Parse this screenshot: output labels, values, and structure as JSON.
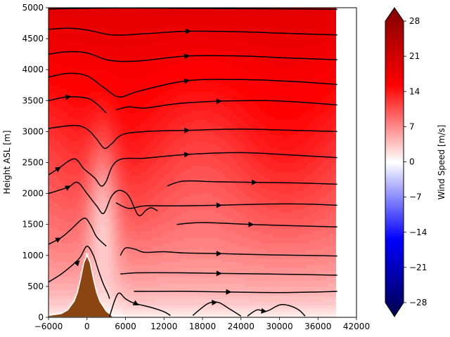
{
  "chart_data": {
    "type": "contourf",
    "title": "",
    "xlabel": "",
    "ylabel": "Height ASL [m]",
    "xlim": [
      -6000,
      42000
    ],
    "ylim": [
      0,
      5000
    ],
    "xticks": [
      "−6000",
      "0",
      "6000",
      "12000",
      "18000",
      "24000",
      "30000",
      "36000",
      "42000"
    ],
    "yticks": [
      "0",
      "500",
      "1000",
      "1500",
      "2000",
      "2500",
      "3000",
      "3500",
      "4000",
      "4500",
      "5000"
    ],
    "data_extent_x": [
      -6000,
      39000
    ],
    "colorbar": {
      "label": "Wind Speed [m/s]",
      "range": [
        -28,
        28
      ],
      "extend": "both",
      "colormap": "seismic",
      "ticks": [
        "−28",
        "−21",
        "−14",
        "−7",
        "0",
        "7",
        "14",
        "21",
        "28"
      ]
    },
    "terrain": {
      "color": "#8B4513",
      "peak_x": 0,
      "peak_height": 1000,
      "base_x": [
        -6000,
        4000
      ],
      "profile": [
        [
          -6000,
          30
        ],
        [
          -4000,
          60
        ],
        [
          -3000,
          120
        ],
        [
          -2000,
          260
        ],
        [
          -1500,
          400
        ],
        [
          -1000,
          620
        ],
        [
          -500,
          880
        ],
        [
          0,
          1000
        ],
        [
          500,
          880
        ],
        [
          1000,
          620
        ],
        [
          1500,
          400
        ],
        [
          2000,
          260
        ],
        [
          3000,
          100
        ],
        [
          4000,
          20
        ]
      ]
    },
    "wind_speed_field": {
      "units": "m/s",
      "surface_values_far": 3,
      "top_values": 17,
      "lee_minimum_x": 2500,
      "lee_minimum_value": 2
    },
    "streamlines": [
      {
        "points": [
          [
            -6000,
            4980
          ],
          [
            0,
            4990
          ],
          [
            6000,
            4995
          ],
          [
            15000,
            4990
          ],
          [
            24000,
            4985
          ],
          [
            33000,
            4980
          ],
          [
            39000,
            4975
          ]
        ]
      },
      {
        "points": [
          [
            -6000,
            4650
          ],
          [
            -3000,
            4670
          ],
          [
            0,
            4640
          ],
          [
            4000,
            4560
          ],
          [
            9000,
            4580
          ],
          [
            15700,
            4620
          ],
          [
            24000,
            4610
          ],
          [
            30000,
            4590
          ],
          [
            39000,
            4560
          ]
        ],
        "arrows": [
          [
            15700,
            4620
          ]
        ]
      },
      {
        "points": [
          [
            -6000,
            4250
          ],
          [
            -3000,
            4290
          ],
          [
            0,
            4270
          ],
          [
            3500,
            4150
          ],
          [
            8000,
            4140
          ],
          [
            15500,
            4220
          ],
          [
            24000,
            4220
          ],
          [
            31000,
            4190
          ],
          [
            39000,
            4160
          ]
        ],
        "arrows": [
          [
            15500,
            4220
          ]
        ]
      },
      {
        "points": [
          [
            -6000,
            3880
          ],
          [
            -3000,
            3940
          ],
          [
            0,
            3900
          ],
          [
            2500,
            3720
          ],
          [
            5000,
            3560
          ],
          [
            8000,
            3650
          ],
          [
            15500,
            3820
          ],
          [
            24000,
            3840
          ],
          [
            32000,
            3810
          ],
          [
            39000,
            3760
          ]
        ],
        "arrows": [
          [
            15500,
            3820
          ]
        ]
      },
      {
        "points": [
          [
            -6000,
            3500
          ],
          [
            -3000,
            3560
          ],
          [
            0,
            3540
          ],
          [
            1500,
            3450
          ],
          [
            3000,
            3300
          ]
        ],
        "arrows": [
          [
            -3000,
            3560
          ]
        ]
      },
      {
        "points": [
          [
            4500,
            3350
          ],
          [
            6500,
            3400
          ],
          [
            9000,
            3380
          ],
          [
            14000,
            3450
          ],
          [
            20500,
            3490
          ],
          [
            28000,
            3500
          ],
          [
            34000,
            3470
          ],
          [
            39000,
            3430
          ]
        ],
        "arrows": [
          [
            20500,
            3490
          ]
        ]
      },
      {
        "points": [
          [
            -6000,
            3050
          ],
          [
            -2000,
            3100
          ],
          [
            0,
            3040
          ],
          [
            1500,
            2880
          ],
          [
            2700,
            2730
          ],
          [
            3800,
            2800
          ],
          [
            5500,
            2950
          ],
          [
            9000,
            3000
          ],
          [
            15500,
            3020
          ],
          [
            24000,
            3040
          ],
          [
            32000,
            3020
          ],
          [
            39000,
            3000
          ]
        ],
        "arrows": [
          [
            15500,
            3020
          ]
        ]
      },
      {
        "points": [
          [
            -6000,
            2300
          ],
          [
            -4500,
            2400
          ],
          [
            -2000,
            2560
          ],
          [
            -500,
            2400
          ],
          [
            1200,
            2250
          ],
          [
            2200,
            2120
          ],
          [
            3000,
            2200
          ],
          [
            4000,
            2450
          ],
          [
            5500,
            2560
          ],
          [
            9000,
            2570
          ],
          [
            15500,
            2630
          ],
          [
            24000,
            2660
          ],
          [
            32000,
            2620
          ],
          [
            39000,
            2580
          ]
        ],
        "arrows": [
          [
            -4500,
            2400
          ],
          [
            15500,
            2630
          ]
        ]
      },
      {
        "points": [
          [
            -6000,
            2000
          ],
          [
            -3000,
            2100
          ],
          [
            -1500,
            2180
          ],
          [
            0,
            2000
          ],
          [
            1500,
            1800
          ],
          [
            2600,
            1680
          ],
          [
            3800,
            1950
          ],
          [
            5000,
            2050
          ],
          [
            6500,
            1960
          ],
          [
            8000,
            1650
          ],
          [
            9200,
            1730
          ],
          [
            10000,
            1770
          ],
          [
            11000,
            1720
          ]
        ],
        "arrows": [
          [
            -3000,
            2100
          ]
        ]
      },
      {
        "points": [
          [
            12500,
            2120
          ],
          [
            15000,
            2200
          ],
          [
            20000,
            2190
          ],
          [
            26000,
            2180
          ],
          [
            33000,
            2170
          ],
          [
            39000,
            2150
          ]
        ],
        "arrows": [
          [
            26000,
            2180
          ]
        ]
      },
      {
        "points": [
          [
            4500,
            1850
          ],
          [
            6500,
            1760
          ],
          [
            9000,
            1800
          ],
          [
            14000,
            1800
          ],
          [
            20500,
            1810
          ],
          [
            28000,
            1830
          ],
          [
            34000,
            1830
          ],
          [
            39000,
            1810
          ]
        ],
        "arrows": [
          [
            20500,
            1810
          ]
        ]
      },
      {
        "points": [
          [
            -6000,
            1180
          ],
          [
            -4000,
            1290
          ],
          [
            -2500,
            1420
          ],
          [
            -500,
            1600
          ],
          [
            500,
            1500
          ],
          [
            1500,
            1300
          ],
          [
            3000,
            1150
          ]
        ],
        "arrows": [
          [
            -4500,
            1260
          ]
        ]
      },
      {
        "points": [
          [
            14000,
            1500
          ],
          [
            18000,
            1530
          ],
          [
            25500,
            1500
          ],
          [
            32000,
            1480
          ],
          [
            39000,
            1460
          ]
        ],
        "arrows": [
          [
            25500,
            1500
          ]
        ]
      },
      {
        "points": [
          [
            -6000,
            570
          ],
          [
            -4000,
            700
          ],
          [
            -2000,
            870
          ],
          [
            -1000,
            980
          ],
          [
            0,
            1150
          ],
          [
            1000,
            1000
          ],
          [
            1800,
            750
          ],
          [
            2500,
            550
          ],
          [
            3300,
            370
          ],
          [
            3500,
            300
          ]
        ],
        "arrows": [
          [
            -1500,
            880
          ]
        ]
      },
      {
        "points": [
          [
            5200,
            1000
          ],
          [
            6000,
            1120
          ],
          [
            7500,
            1100
          ],
          [
            9000,
            1050
          ],
          [
            12000,
            1060
          ],
          [
            15000,
            1040
          ],
          [
            20500,
            1030
          ],
          [
            28000,
            1010
          ],
          [
            34000,
            1000
          ],
          [
            39000,
            990
          ]
        ],
        "arrows": [
          [
            20500,
            1030
          ]
        ]
      },
      {
        "points": [
          [
            5200,
            700
          ],
          [
            8000,
            720
          ],
          [
            14000,
            720
          ],
          [
            20500,
            710
          ],
          [
            28000,
            700
          ],
          [
            34000,
            690
          ],
          [
            39000,
            680
          ]
        ],
        "arrows": [
          [
            20500,
            710
          ]
        ]
      },
      {
        "points": [
          [
            7300,
            420
          ],
          [
            12000,
            420
          ],
          [
            16000,
            420
          ],
          [
            22000,
            410
          ],
          [
            30000,
            400
          ],
          [
            36000,
            410
          ],
          [
            39000,
            420
          ]
        ],
        "arrows": [
          [
            22000,
            410
          ]
        ]
      },
      {
        "points": [
          [
            3500,
            10
          ],
          [
            4800,
            380
          ],
          [
            6000,
            300
          ],
          [
            7300,
            230
          ],
          [
            10000,
            160
          ],
          [
            12000,
            90
          ],
          [
            13000,
            30
          ]
        ],
        "arrows": [
          [
            7600,
            220
          ]
        ]
      },
      {
        "points": [
          [
            16500,
            30
          ],
          [
            17500,
            120
          ],
          [
            19000,
            230
          ],
          [
            20500,
            240
          ],
          [
            22000,
            150
          ],
          [
            24000,
            20
          ]
        ],
        "arrows": [
          [
            19800,
            240
          ]
        ]
      },
      {
        "points": [
          [
            25000,
            20
          ],
          [
            26500,
            120
          ],
          [
            28000,
            100
          ],
          [
            30000,
            200
          ],
          [
            31500,
            190
          ],
          [
            33000,
            120
          ],
          [
            34000,
            20
          ]
        ],
        "arrows": [
          [
            27500,
            100
          ]
        ]
      }
    ]
  }
}
